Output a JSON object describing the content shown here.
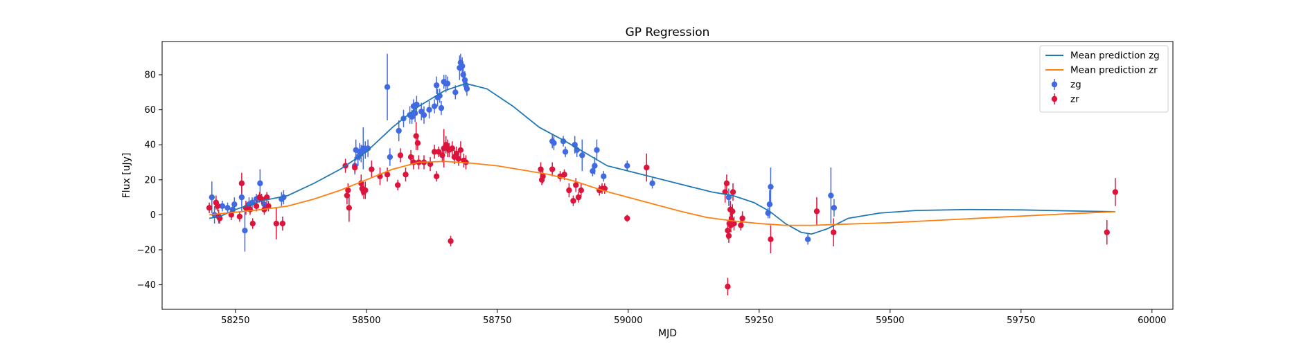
{
  "chart_data": {
    "type": "scatter",
    "title": "GP Regression",
    "xlabel": "MJD",
    "ylabel": "Flux [uJy]",
    "xlim": [
      58110,
      60040
    ],
    "ylim": [
      -54,
      99
    ],
    "xticks": [
      58250,
      58500,
      58750,
      59000,
      59250,
      59500,
      59750,
      60000
    ],
    "yticks": [
      -40,
      -20,
      0,
      20,
      40,
      60,
      80
    ],
    "grid": false,
    "legend_position": "top-right",
    "series": [
      {
        "name": "Mean prediction zg",
        "kind": "line",
        "color": "#1f77b4",
        "x": [
          58200,
          58220,
          58250,
          58300,
          58350,
          58400,
          58450,
          58500,
          58550,
          58600,
          58650,
          58690,
          58730,
          58780,
          58830,
          58880,
          58920,
          58960,
          59000,
          59040,
          59080,
          59120,
          59160,
          59200,
          59240,
          59270,
          59300,
          59330,
          59350,
          59380,
          59420,
          59480,
          59550,
          59650,
          59750,
          59850,
          59930
        ],
        "y": [
          -2,
          -1,
          3,
          8,
          11,
          18,
          26,
          36,
          50,
          62,
          71,
          75,
          72,
          62,
          50,
          42,
          35,
          28,
          25,
          22,
          19,
          16,
          13,
          11,
          7,
          2,
          -5,
          -10,
          -11,
          -8,
          -2,
          1,
          2.5,
          3,
          2.8,
          2.2,
          1.8
        ]
      },
      {
        "name": "Mean prediction zr",
        "kind": "line",
        "color": "#ff7f0e",
        "x": [
          58200,
          58250,
          58300,
          58350,
          58400,
          58450,
          58500,
          58550,
          58600,
          58650,
          58700,
          58750,
          58800,
          58850,
          58900,
          58950,
          59000,
          59050,
          59100,
          59150,
          59200,
          59250,
          59300,
          59350,
          59400,
          59500,
          59600,
          59700,
          59800,
          59930
        ],
        "y": [
          0,
          1.5,
          3,
          5,
          9,
          14,
          20,
          26,
          30,
          30.5,
          29.5,
          28,
          25.5,
          23,
          19,
          14,
          10,
          6,
          2,
          -1.5,
          -3.5,
          -5,
          -6,
          -6,
          -5.5,
          -4.5,
          -3,
          -1.5,
          0,
          1.8
        ]
      },
      {
        "name": "zg",
        "kind": "errorbar",
        "color": "#4169e1",
        "points": [
          [
            58205,
            10,
            9
          ],
          [
            58210,
            0,
            5
          ],
          [
            58218,
            -1,
            4
          ],
          [
            58225,
            5,
            3
          ],
          [
            58235,
            4,
            3
          ],
          [
            58245,
            3,
            3
          ],
          [
            58248,
            6,
            4
          ],
          [
            58262,
            10,
            8
          ],
          [
            58268,
            -9,
            12
          ],
          [
            58276,
            6,
            4
          ],
          [
            58282,
            7,
            3
          ],
          [
            58290,
            9,
            3
          ],
          [
            58297,
            18,
            8
          ],
          [
            58305,
            6,
            4
          ],
          [
            58338,
            9,
            4
          ],
          [
            58342,
            10,
            4
          ],
          [
            58478,
            28,
            5
          ],
          [
            58480,
            37,
            6
          ],
          [
            58484,
            33,
            5
          ],
          [
            58487,
            36,
            5
          ],
          [
            58490,
            35,
            5
          ],
          [
            58494,
            38,
            12
          ],
          [
            58498,
            37,
            5
          ],
          [
            58503,
            38,
            5
          ],
          [
            58540,
            73,
            19
          ],
          [
            58545,
            33,
            5
          ],
          [
            58562,
            48,
            6
          ],
          [
            58571,
            55,
            5
          ],
          [
            58583,
            57,
            5
          ],
          [
            58587,
            56,
            4
          ],
          [
            58590,
            62,
            4
          ],
          [
            58593,
            58,
            5
          ],
          [
            58596,
            63,
            5
          ],
          [
            58605,
            59,
            5
          ],
          [
            58610,
            57,
            5
          ],
          [
            58620,
            60,
            5
          ],
          [
            58630,
            62,
            4
          ],
          [
            58634,
            74,
            5
          ],
          [
            58636,
            67,
            5
          ],
          [
            58640,
            68,
            4
          ],
          [
            58643,
            61,
            4
          ],
          [
            58648,
            76,
            4
          ],
          [
            58652,
            75,
            5
          ],
          [
            58655,
            75,
            4
          ],
          [
            58670,
            70,
            4
          ],
          [
            58678,
            84,
            7
          ],
          [
            58680,
            87,
            5
          ],
          [
            58683,
            85,
            5
          ],
          [
            58685,
            80,
            5
          ],
          [
            58688,
            77,
            5
          ],
          [
            58690,
            74,
            4
          ],
          [
            58692,
            72,
            4
          ],
          [
            58855,
            42,
            4
          ],
          [
            58858,
            41,
            4
          ],
          [
            58876,
            42,
            3
          ],
          [
            58880,
            36,
            3
          ],
          [
            58898,
            40,
            5
          ],
          [
            58902,
            37,
            4
          ],
          [
            58912,
            34,
            9
          ],
          [
            58932,
            25,
            3
          ],
          [
            58936,
            28,
            5
          ],
          [
            58940,
            37,
            6
          ],
          [
            58953,
            22,
            3
          ],
          [
            58998,
            28,
            3
          ],
          [
            59046,
            18,
            3
          ],
          [
            59192,
            10,
            5
          ],
          [
            59267,
            1,
            3
          ],
          [
            59270,
            6,
            8
          ],
          [
            59272,
            16,
            11
          ],
          [
            59343,
            -14,
            3
          ],
          [
            59387,
            11,
            16
          ],
          [
            59393,
            4,
            5
          ]
        ]
      },
      {
        "name": "zr",
        "kind": "errorbar",
        "color": "#dc143c",
        "points": [
          [
            58200,
            4,
            3
          ],
          [
            58213,
            7,
            4
          ],
          [
            58216,
            5,
            3
          ],
          [
            58218,
            -1,
            3
          ],
          [
            58220,
            -2,
            3
          ],
          [
            58242,
            0,
            3
          ],
          [
            58258,
            -1,
            3
          ],
          [
            58262,
            18,
            6
          ],
          [
            58270,
            4,
            4
          ],
          [
            58278,
            3,
            3
          ],
          [
            58283,
            -5,
            3
          ],
          [
            58290,
            5,
            3
          ],
          [
            58296,
            10,
            3
          ],
          [
            58300,
            9,
            3
          ],
          [
            58305,
            3,
            3
          ],
          [
            58310,
            10,
            3
          ],
          [
            58313,
            5,
            3
          ],
          [
            58328,
            -5,
            9
          ],
          [
            58340,
            -5,
            4
          ],
          [
            58460,
            28,
            4
          ],
          [
            58463,
            11,
            5
          ],
          [
            58465,
            14,
            4
          ],
          [
            58467,
            4,
            8
          ],
          [
            58478,
            27,
            3
          ],
          [
            58490,
            18,
            5
          ],
          [
            58492,
            15,
            4
          ],
          [
            58495,
            13,
            4
          ],
          [
            58498,
            14,
            5
          ],
          [
            58510,
            26,
            5
          ],
          [
            58526,
            22,
            5
          ],
          [
            58540,
            23,
            4
          ],
          [
            58560,
            17,
            3
          ],
          [
            58565,
            34,
            4
          ],
          [
            58575,
            23,
            4
          ],
          [
            58585,
            33,
            4
          ],
          [
            58590,
            30,
            4
          ],
          [
            58595,
            45,
            8
          ],
          [
            58598,
            41,
            4
          ],
          [
            58600,
            30,
            4
          ],
          [
            58610,
            30,
            4
          ],
          [
            58622,
            29,
            4
          ],
          [
            58630,
            36,
            4
          ],
          [
            58634,
            22,
            3
          ],
          [
            58638,
            36,
            3
          ],
          [
            58645,
            34,
            4
          ],
          [
            58648,
            38,
            11
          ],
          [
            58652,
            40,
            5
          ],
          [
            58655,
            38,
            5
          ],
          [
            58658,
            37,
            4
          ],
          [
            58661,
            -15,
            3
          ],
          [
            58664,
            38,
            4
          ],
          [
            58668,
            33,
            4
          ],
          [
            58672,
            35,
            4
          ],
          [
            58676,
            32,
            4
          ],
          [
            58680,
            37,
            5
          ],
          [
            58686,
            31,
            4
          ],
          [
            58690,
            30,
            4
          ],
          [
            58833,
            26,
            4
          ],
          [
            58835,
            20,
            3
          ],
          [
            58837,
            22,
            4
          ],
          [
            58855,
            26,
            4
          ],
          [
            58870,
            22,
            3
          ],
          [
            58878,
            23,
            3
          ],
          [
            58887,
            14,
            4
          ],
          [
            58895,
            8,
            3
          ],
          [
            58900,
            17,
            4
          ],
          [
            58905,
            10,
            3
          ],
          [
            58910,
            14,
            4
          ],
          [
            58945,
            14,
            3
          ],
          [
            58950,
            15,
            3
          ],
          [
            58955,
            15,
            3
          ],
          [
            58998,
            -2,
            2
          ],
          [
            59035,
            27,
            8
          ],
          [
            59185,
            13,
            6
          ],
          [
            59188,
            18,
            5
          ],
          [
            59190,
            -9,
            5
          ],
          [
            59192,
            -12,
            4
          ],
          [
            59193,
            -5,
            4
          ],
          [
            59195,
            3,
            5
          ],
          [
            59196,
            -6,
            4
          ],
          [
            59197,
            -3,
            4
          ],
          [
            59199,
            2,
            4
          ],
          [
            59200,
            13,
            5
          ],
          [
            59202,
            -5,
            4
          ],
          [
            59190,
            -41,
            5
          ],
          [
            59215,
            -6,
            3
          ],
          [
            59218,
            -2,
            4
          ],
          [
            59272,
            -14,
            8
          ],
          [
            59360,
            2,
            8
          ],
          [
            59392,
            -10,
            8
          ],
          [
            59914,
            -10,
            7
          ],
          [
            59930,
            13,
            8
          ]
        ]
      }
    ]
  }
}
